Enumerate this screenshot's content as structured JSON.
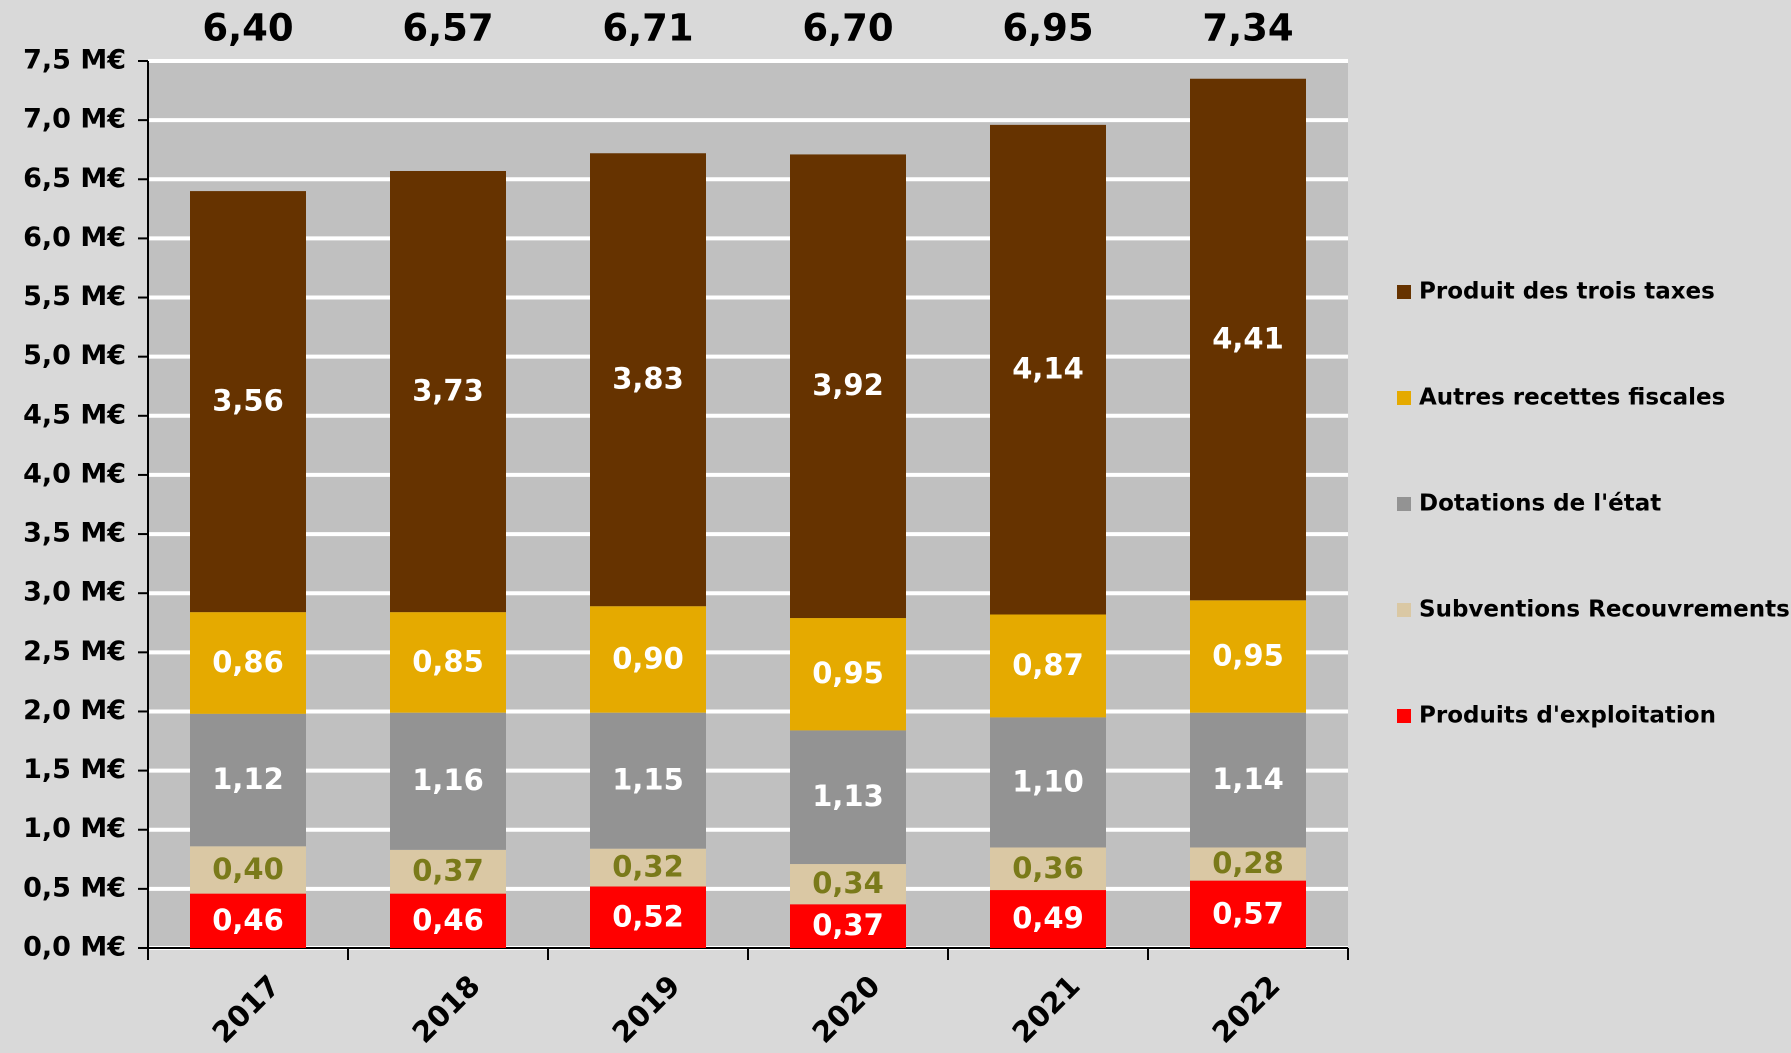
{
  "chart_data": {
    "type": "bar",
    "stacked": true,
    "categories": [
      "2017",
      "2018",
      "2019",
      "2020",
      "2021",
      "2022"
    ],
    "totals": [
      "6,40",
      "6,57",
      "6,71",
      "6,70",
      "6,95",
      "7,34"
    ],
    "series": [
      {
        "name": "Produits d'exploitation",
        "color": "#ff0000",
        "label_color": "#ffffff",
        "values": [
          0.46,
          0.46,
          0.52,
          0.37,
          0.49,
          0.57
        ],
        "labels": [
          "0,46",
          "0,46",
          "0,52",
          "0,37",
          "0,49",
          "0,57"
        ]
      },
      {
        "name": "Subventions Recouvrements",
        "color": "#dac8a4",
        "label_color": "#7a7a1a",
        "values": [
          0.4,
          0.37,
          0.32,
          0.34,
          0.36,
          0.28
        ],
        "labels": [
          "0,40",
          "0,37",
          "0,32",
          "0,34",
          "0,36",
          "0,28"
        ]
      },
      {
        "name": "Dotations de l'état",
        "color": "#939393",
        "label_color": "#ffffff",
        "values": [
          1.12,
          1.16,
          1.15,
          1.13,
          1.1,
          1.14
        ],
        "labels": [
          "1,12",
          "1,16",
          "1,15",
          "1,13",
          "1,10",
          "1,14"
        ]
      },
      {
        "name": "Autres recettes fiscales",
        "color": "#e5aa00",
        "label_color": "#ffffff",
        "values": [
          0.86,
          0.85,
          0.9,
          0.95,
          0.87,
          0.95
        ],
        "labels": [
          "0,86",
          "0,85",
          "0,90",
          "0,95",
          "0,87",
          "0,95"
        ]
      },
      {
        "name": "Produit des trois taxes",
        "color": "#663300",
        "label_color": "#ffffff",
        "values": [
          3.56,
          3.73,
          3.83,
          3.92,
          4.14,
          4.41
        ],
        "labels": [
          "3,56",
          "3,73",
          "3,83",
          "3,92",
          "4,14",
          "4,41"
        ]
      }
    ],
    "legend_order": [
      "Produit des trois taxes",
      "Autres recettes fiscales",
      "Dotations de l'état",
      "Subventions Recouvrements",
      "Produits d'exploitation"
    ],
    "ylim": [
      0,
      7.5
    ],
    "ytick_values": [
      0,
      0.5,
      1,
      1.5,
      2,
      2.5,
      3,
      3.5,
      4,
      4.5,
      5,
      5.5,
      6,
      6.5,
      7,
      7.5
    ],
    "ytick_labels": [
      "0,0 M€",
      "0,5 M€",
      "1,0 M€",
      "1,5 M€",
      "2,0 M€",
      "2,5 M€",
      "3,0 M€",
      "3,5 M€",
      "4,0 M€",
      "4,5 M€",
      "5,0 M€",
      "5,5 M€",
      "6,0 M€",
      "6,5 M€",
      "7,0 M€",
      "7,5 M€"
    ],
    "grid": true,
    "legend_position": "right",
    "plot_background": "#c0c0c0",
    "grid_color": "#ffffff"
  }
}
